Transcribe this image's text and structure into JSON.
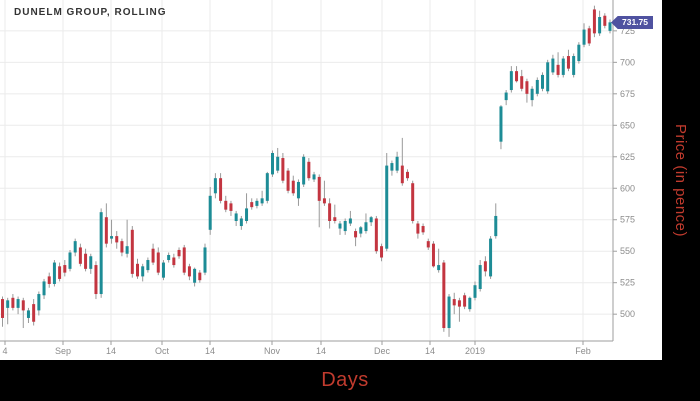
{
  "title": "DUNELM GROUP, ROLLING",
  "price_flag": {
    "value": "731.75",
    "color": "#4f52a0",
    "text_color": "#ffffff"
  },
  "axis_labels": {
    "x": "Days",
    "y": "Price (in pence)",
    "color": "#c13b2e"
  },
  "chart_data": {
    "type": "candlestick",
    "title": "DUNELM GROUP, ROLLING",
    "xlabel": "Days",
    "ylabel": "Price (in pence)",
    "last_price": 731.75,
    "y_axis": {
      "ticks": [
        725,
        700,
        675,
        650,
        625,
        600,
        575,
        550,
        525,
        500
      ],
      "price_top": 749.5,
      "price_bottom": 478.7
    },
    "x_ticks": [
      {
        "label": "4",
        "x": 5
      },
      {
        "label": "Sep",
        "x": 63
      },
      {
        "label": "14",
        "x": 111
      },
      {
        "label": "Oct",
        "x": 162
      },
      {
        "label": "14",
        "x": 210
      },
      {
        "label": "Nov",
        "x": 272
      },
      {
        "label": "14",
        "x": 321
      },
      {
        "label": "Dec",
        "x": 382
      },
      {
        "label": "14",
        "x": 430
      },
      {
        "label": "2019",
        "x": 475
      },
      {
        "label": "Feb",
        "x": 583
      }
    ],
    "colors": {
      "up": "#1d8c96",
      "down": "#c33540",
      "wick": "#999999",
      "grid": "#ebebeb",
      "axis": "#9e9e9e",
      "tick_text": "#8c8c8c"
    },
    "legend": "none",
    "grid": true,
    "candles_ohlc": [
      [
        512,
        514,
        490,
        497
      ],
      [
        505,
        513,
        492,
        511
      ],
      [
        513,
        516,
        503,
        505
      ],
      [
        505,
        514,
        500,
        512
      ],
      [
        511,
        513,
        489,
        503
      ],
      [
        497,
        505,
        493,
        503
      ],
      [
        508,
        512,
        491,
        494
      ],
      [
        503,
        518,
        499,
        516
      ],
      [
        515,
        528,
        512,
        526
      ],
      [
        530,
        533,
        521,
        524
      ],
      [
        524,
        543,
        522,
        541
      ],
      [
        538,
        541,
        526,
        528
      ],
      [
        539,
        543,
        530,
        533
      ],
      [
        536,
        551,
        534,
        549
      ],
      [
        549,
        560,
        546,
        558
      ],
      [
        553,
        556,
        538,
        540
      ],
      [
        548,
        552,
        534,
        536
      ],
      [
        536,
        548,
        532,
        546
      ],
      [
        539,
        542,
        512,
        516
      ],
      [
        516,
        584,
        513,
        581
      ],
      [
        577,
        588,
        553,
        556
      ],
      [
        560,
        575,
        556,
        562
      ],
      [
        562,
        566,
        552,
        557
      ],
      [
        558,
        560,
        546,
        549
      ],
      [
        548,
        575,
        545,
        554
      ],
      [
        567,
        570,
        529,
        532
      ],
      [
        540,
        544,
        528,
        530
      ],
      [
        530,
        540,
        526,
        538
      ],
      [
        535,
        545,
        533,
        543
      ],
      [
        552,
        556,
        539,
        541
      ],
      [
        549,
        553,
        531,
        533
      ],
      [
        529,
        543,
        527,
        541
      ],
      [
        543,
        549,
        541,
        547
      ],
      [
        545,
        548,
        537,
        539
      ],
      [
        551,
        553,
        544,
        546
      ],
      [
        553,
        555,
        531,
        533
      ],
      [
        538,
        540,
        527,
        530
      ],
      [
        525,
        537,
        522,
        536
      ],
      [
        533,
        535,
        525,
        527
      ],
      [
        533,
        556,
        531,
        553
      ],
      [
        567,
        601,
        563,
        594
      ],
      [
        596,
        612,
        592,
        608
      ],
      [
        608,
        612,
        588,
        590
      ],
      [
        590,
        594,
        581,
        583
      ],
      [
        588,
        590,
        578,
        582
      ],
      [
        574,
        582,
        570,
        580
      ],
      [
        570,
        578,
        567,
        576
      ],
      [
        574,
        596,
        572,
        584
      ],
      [
        589,
        592,
        583,
        585
      ],
      [
        586,
        592,
        584,
        590
      ],
      [
        588,
        598,
        586,
        592
      ],
      [
        590,
        613,
        588,
        612
      ],
      [
        611,
        630,
        609,
        628
      ],
      [
        614,
        632,
        612,
        625
      ],
      [
        624,
        628,
        604,
        606
      ],
      [
        614,
        616,
        596,
        598
      ],
      [
        606,
        610,
        594,
        596
      ],
      [
        592,
        607,
        586,
        605
      ],
      [
        603,
        627,
        601,
        625
      ],
      [
        621,
        624,
        606,
        608
      ],
      [
        607,
        613,
        605,
        611
      ],
      [
        609,
        611,
        569,
        590
      ],
      [
        592,
        606,
        586,
        588
      ],
      [
        588,
        592,
        568,
        574
      ],
      [
        577,
        587,
        572,
        574
      ],
      [
        568,
        574,
        563,
        572
      ],
      [
        566,
        576,
        563,
        574
      ],
      [
        572,
        582,
        570,
        576
      ],
      [
        566,
        568,
        554,
        561
      ],
      [
        564,
        570,
        561,
        569
      ],
      [
        566,
        580,
        564,
        573
      ],
      [
        573,
        578,
        570,
        577
      ],
      [
        576,
        578,
        548,
        550
      ],
      [
        554,
        556,
        542,
        545
      ],
      [
        552,
        628,
        550,
        618
      ],
      [
        614,
        622,
        610,
        620
      ],
      [
        614,
        629,
        612,
        625
      ],
      [
        618,
        640,
        602,
        604
      ],
      [
        613,
        615,
        606,
        608
      ],
      [
        604,
        606,
        572,
        574
      ],
      [
        572,
        574,
        560,
        564
      ],
      [
        570,
        572,
        563,
        565
      ],
      [
        558,
        560,
        551,
        553
      ],
      [
        556,
        558,
        537,
        538
      ],
      [
        535,
        552,
        533,
        539
      ],
      [
        541,
        543,
        486,
        489
      ],
      [
        489,
        516,
        482,
        514
      ],
      [
        512,
        517,
        500,
        507
      ],
      [
        511,
        513,
        494,
        506
      ],
      [
        515,
        517,
        504,
        506
      ],
      [
        504,
        514,
        502,
        513
      ],
      [
        513,
        526,
        511,
        523
      ],
      [
        520,
        543,
        518,
        539
      ],
      [
        542,
        546,
        530,
        534
      ],
      [
        530,
        562,
        528,
        560
      ],
      [
        562,
        588,
        560,
        578
      ],
      [
        637,
        666,
        631,
        665
      ],
      [
        670,
        678,
        666,
        676
      ],
      [
        678,
        697,
        676,
        693
      ],
      [
        693,
        697,
        684,
        685
      ],
      [
        689,
        694,
        677,
        679
      ],
      [
        685,
        687,
        668,
        675
      ],
      [
        670,
        681,
        665,
        679
      ],
      [
        675,
        688,
        673,
        686
      ],
      [
        679,
        692,
        677,
        690
      ],
      [
        677,
        702,
        675,
        700
      ],
      [
        692,
        706,
        690,
        703
      ],
      [
        698,
        708,
        688,
        690
      ],
      [
        690,
        705,
        688,
        703
      ],
      [
        705,
        710,
        693,
        695
      ],
      [
        690,
        707,
        688,
        705
      ],
      [
        701,
        716,
        699,
        714
      ],
      [
        714,
        731,
        712,
        726
      ],
      [
        727,
        729,
        713,
        715
      ],
      [
        742,
        745,
        720,
        723
      ],
      [
        723,
        741,
        721,
        736
      ],
      [
        737,
        739,
        727,
        729
      ],
      [
        725,
        734,
        723,
        731.75
      ]
    ]
  }
}
